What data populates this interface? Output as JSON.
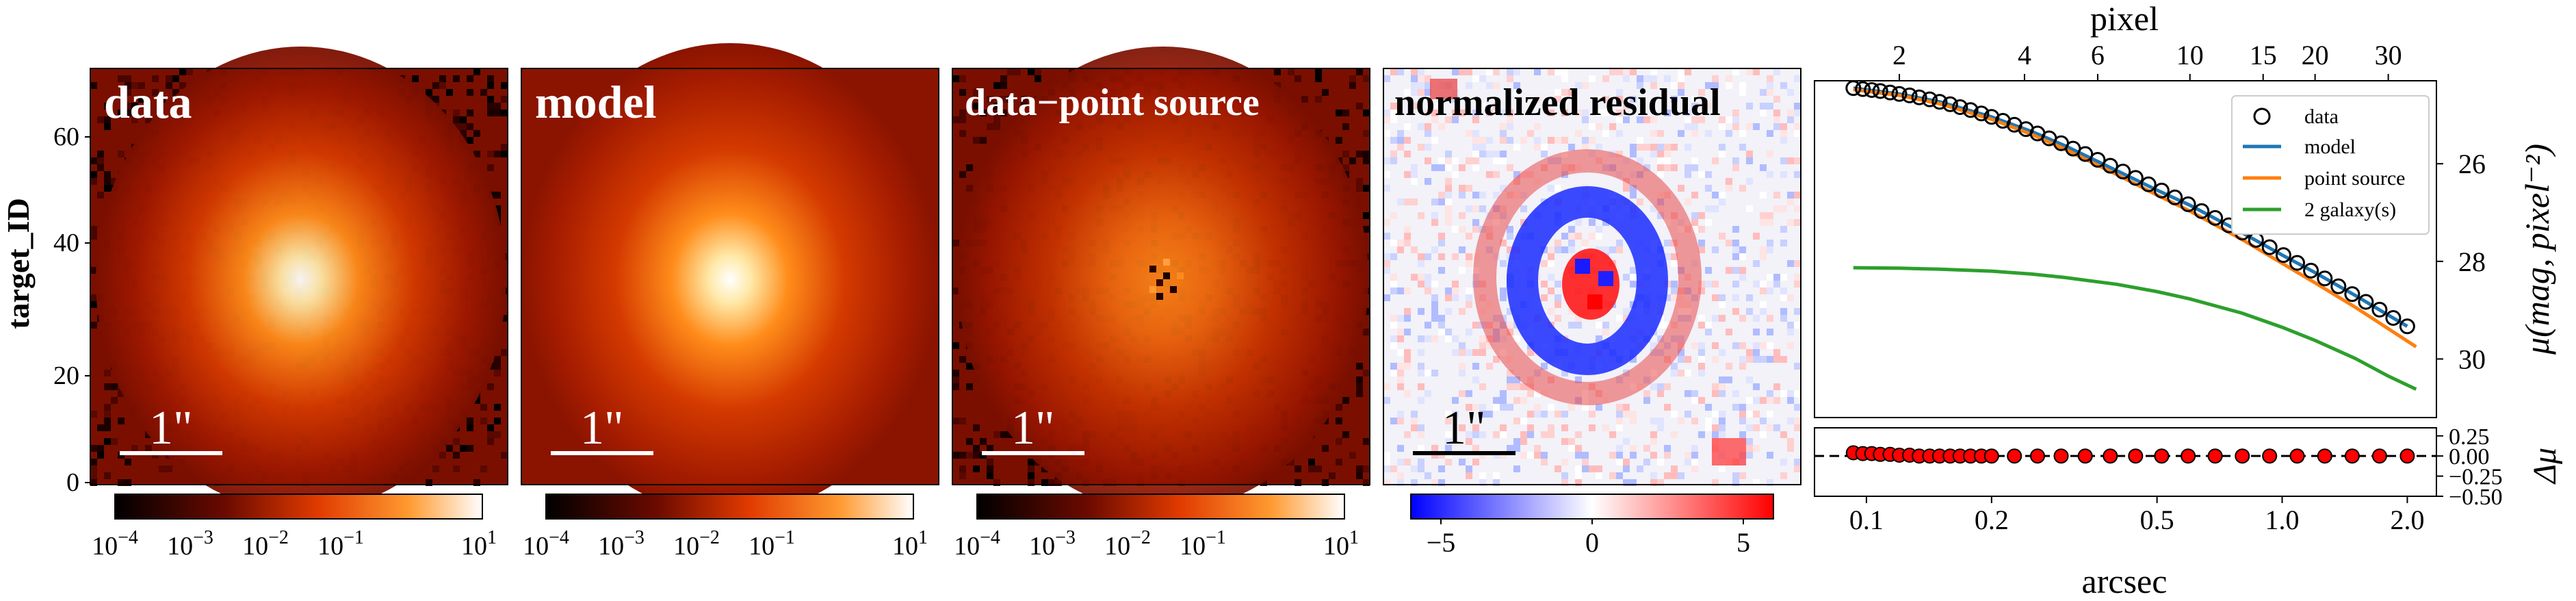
{
  "figure": {
    "y_label": "target_ID",
    "scale_bar_text": "1\"",
    "y_ticks": [
      "0",
      "20",
      "40",
      "60"
    ]
  },
  "panels": [
    {
      "title": "data",
      "colorbar_ticks": [
        "10",
        "10",
        "10",
        "10",
        "10"
      ],
      "colorbar_exps": [
        "−4",
        "−3",
        "−2",
        "−1",
        "1"
      ]
    },
    {
      "title": "model",
      "colorbar_ticks": [
        "10",
        "10",
        "10",
        "10",
        "10"
      ],
      "colorbar_exps": [
        "−4",
        "−3",
        "−2",
        "−1",
        "1"
      ]
    },
    {
      "title": "data−point source",
      "colorbar_ticks": [
        "10",
        "10",
        "10",
        "10",
        "10"
      ],
      "colorbar_exps": [
        "−4",
        "−3",
        "−2",
        "−1",
        "1"
      ]
    },
    {
      "title": "normalized residual",
      "colorbar_ticks": [
        "−5",
        "0",
        "5"
      ]
    }
  ],
  "chart_data": {
    "type": "line",
    "title": "",
    "top_axis": {
      "label": "pixel",
      "ticks": [
        2,
        4,
        6,
        10,
        15,
        20,
        30
      ]
    },
    "xlabel": "arcsec",
    "xscale": "log",
    "xlim": [
      0.075,
      2.35
    ],
    "x_ticks": [
      0.1,
      0.2,
      0.5,
      1.0,
      2.0
    ],
    "x_tick_labels": [
      "0.1",
      "0.2",
      "0.5",
      "1.0",
      "2.0"
    ],
    "ylabel": "μ(mag, pixel⁻²)",
    "ylim": [
      31.2,
      24.3
    ],
    "y_ticks": [
      26,
      28,
      30
    ],
    "legend": [
      "data",
      "model",
      "point source",
      "2 galaxy(s)"
    ],
    "legend_position": "top-right",
    "series": [
      {
        "name": "data",
        "kind": "markers",
        "x": [
          0.093,
          0.098,
          0.103,
          0.108,
          0.114,
          0.12,
          0.127,
          0.134,
          0.142,
          0.15,
          0.159,
          0.168,
          0.178,
          0.189,
          0.2,
          0.213,
          0.227,
          0.242,
          0.258,
          0.275,
          0.294,
          0.314,
          0.336,
          0.36,
          0.386,
          0.414,
          0.444,
          0.477,
          0.513,
          0.552,
          0.594,
          0.64,
          0.69,
          0.744,
          0.802,
          0.865,
          0.933,
          1.007,
          1.087,
          1.173,
          1.266,
          1.366,
          1.474,
          1.59,
          1.715,
          1.85,
          2.0
        ],
        "y": [
          24.45,
          24.47,
          24.49,
          24.51,
          24.54,
          24.57,
          24.6,
          24.64,
          24.68,
          24.73,
          24.78,
          24.84,
          24.9,
          24.97,
          25.04,
          25.12,
          25.2,
          25.29,
          25.38,
          25.48,
          25.58,
          25.69,
          25.8,
          25.92,
          26.04,
          26.16,
          26.29,
          26.42,
          26.55,
          26.69,
          26.83,
          26.97,
          27.11,
          27.26,
          27.41,
          27.56,
          27.71,
          27.87,
          28.03,
          28.19,
          28.35,
          28.51,
          28.67,
          28.83,
          28.99,
          29.16,
          29.33
        ]
      },
      {
        "name": "model",
        "color": "#1f77b4",
        "x": [
          0.093,
          0.12,
          0.15,
          0.2,
          0.25,
          0.3,
          0.4,
          0.5,
          0.6,
          0.8,
          1.0,
          1.2,
          1.5,
          1.8,
          2.0
        ],
        "y": [
          24.45,
          24.57,
          24.73,
          25.04,
          25.34,
          25.63,
          26.14,
          26.54,
          26.85,
          27.41,
          27.87,
          28.23,
          28.7,
          29.1,
          29.33
        ]
      },
      {
        "name": "point source",
        "color": "#ff7f0e",
        "x": [
          0.093,
          0.12,
          0.15,
          0.2,
          0.25,
          0.3,
          0.4,
          0.5,
          0.6,
          0.8,
          1.0,
          1.2,
          1.5,
          1.8,
          2.1
        ],
        "y": [
          24.48,
          24.6,
          24.77,
          25.09,
          25.4,
          25.7,
          26.22,
          26.64,
          26.97,
          27.55,
          28.04,
          28.44,
          28.94,
          29.38,
          29.75
        ]
      },
      {
        "name": "2 galaxy(s)",
        "color": "#2ca02c",
        "x": [
          0.093,
          0.12,
          0.15,
          0.2,
          0.25,
          0.3,
          0.4,
          0.5,
          0.6,
          0.8,
          1.0,
          1.2,
          1.5,
          1.8,
          2.1
        ],
        "y": [
          28.13,
          28.14,
          28.16,
          28.2,
          28.26,
          28.33,
          28.47,
          28.62,
          28.77,
          29.06,
          29.35,
          29.62,
          29.99,
          30.35,
          30.62
        ]
      }
    ],
    "residual": {
      "ylabel": "Δμ",
      "ylim": [
        -0.5,
        0.35
      ],
      "y_ticks": [
        0.25,
        0.0,
        -0.25,
        -0.5
      ],
      "y_tick_labels": [
        "0.25",
        "0.00",
        "−0.25",
        "−0.50"
      ],
      "x": [
        0.093,
        0.098,
        0.103,
        0.108,
        0.114,
        0.12,
        0.127,
        0.134,
        0.142,
        0.15,
        0.159,
        0.168,
        0.178,
        0.189,
        0.2,
        0.227,
        0.258,
        0.294,
        0.336,
        0.386,
        0.444,
        0.513,
        0.594,
        0.69,
        0.802,
        0.933,
        1.087,
        1.266,
        1.474,
        1.715,
        2.0
      ],
      "y": [
        0.04,
        0.03,
        0.03,
        0.02,
        0.02,
        0.01,
        0.01,
        0.0,
        0.0,
        0.0,
        0.0,
        0.0,
        0.0,
        0.0,
        0.0,
        0.0,
        0.0,
        0.0,
        0.0,
        0.0,
        0.0,
        0.0,
        0.0,
        0.0,
        0.0,
        0.0,
        0.0,
        0.0,
        0.0,
        0.0,
        0.0
      ]
    }
  },
  "colors": {
    "model": "#1f77b4",
    "point_source": "#ff7f0e",
    "galaxy": "#2ca02c",
    "residual_marker": "#ff0000"
  }
}
